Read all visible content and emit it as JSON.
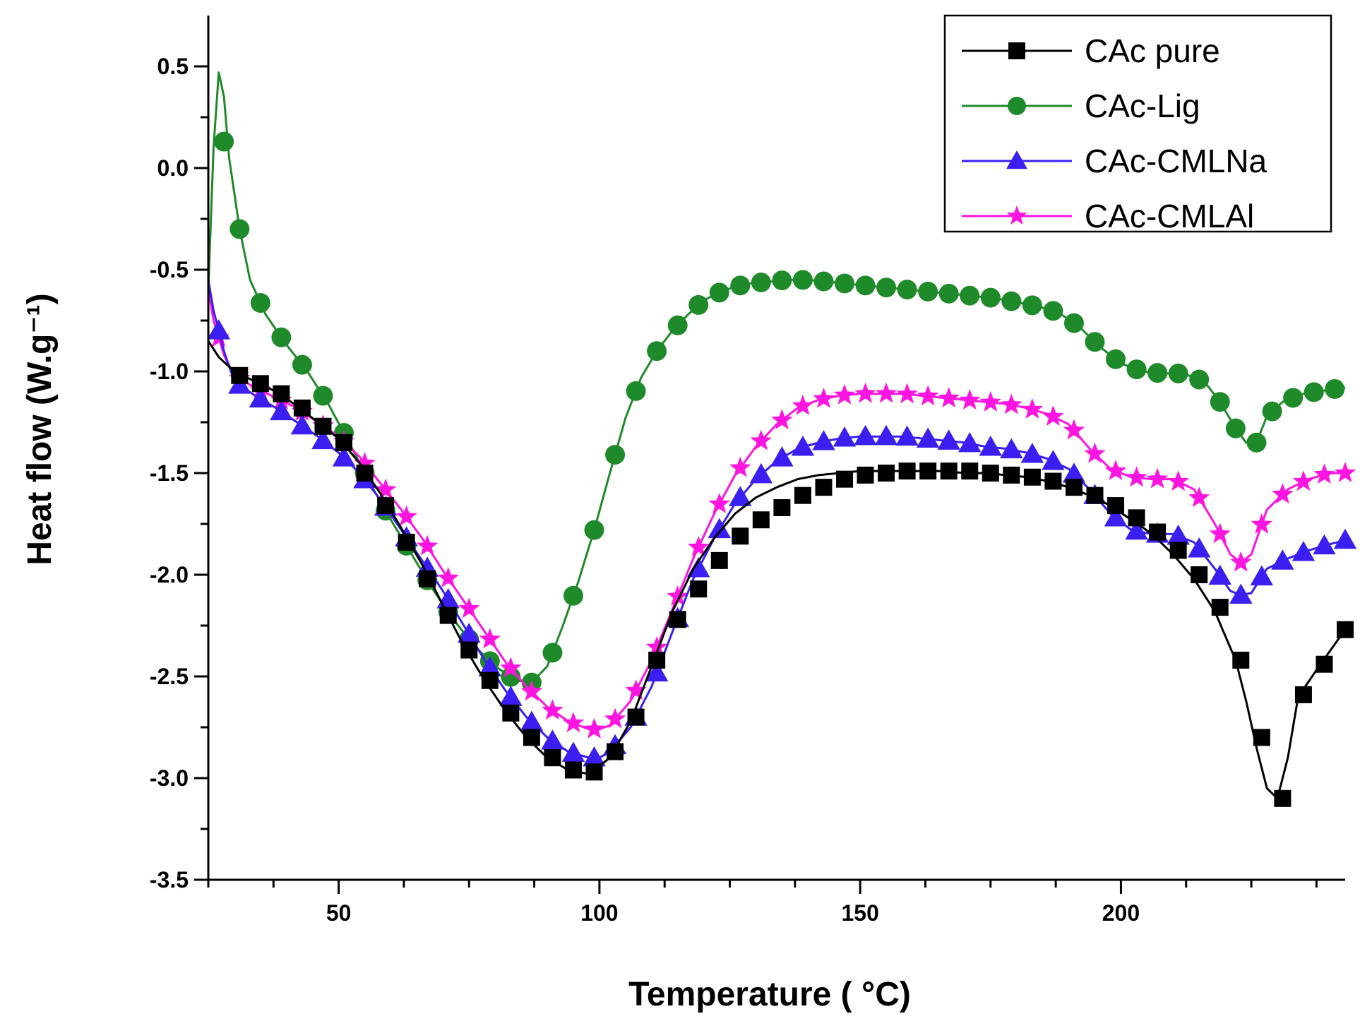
{
  "chart_data": {
    "type": "line",
    "title": "",
    "xlabel": "Temperature ( °C)",
    "ylabel": "Heat flow (W.g⁻¹)",
    "xlim": [
      25,
      243
    ],
    "ylim": [
      -3.5,
      0.75
    ],
    "x_ticks": [
      50,
      100,
      150,
      200
    ],
    "y_ticks": [
      0.5,
      0.0,
      -0.5,
      -1.0,
      -1.5,
      -2.0,
      -2.5,
      -3.0,
      -3.5
    ],
    "y_tick_labels": [
      "0.5",
      "0.0",
      "-0.5",
      "-1.0",
      "-1.5",
      "-2.0",
      "-2.5",
      "-3.0",
      "-3.5"
    ],
    "x_minor_step": 12.5,
    "y_minor_step": 0.25,
    "grid": false,
    "legend_position": "top-right",
    "series": [
      {
        "name": "CAc pure",
        "color": "#000000",
        "marker": "square",
        "x": [
          25,
          27,
          30,
          34,
          38,
          42,
          46,
          50,
          54,
          58,
          62,
          66,
          70,
          74,
          78,
          82,
          86,
          90,
          94,
          98,
          102,
          106,
          110,
          114,
          118,
          122,
          126,
          130,
          134,
          138,
          142,
          146,
          150,
          154,
          158,
          162,
          166,
          170,
          174,
          178,
          182,
          186,
          190,
          194,
          198,
          202,
          206,
          210,
          214,
          218,
          222,
          224,
          226,
          228,
          230,
          232,
          234,
          238,
          243
        ],
        "y": [
          -0.85,
          -0.93,
          -1.0,
          -1.05,
          -1.1,
          -1.17,
          -1.25,
          -1.33,
          -1.45,
          -1.6,
          -1.77,
          -1.95,
          -2.15,
          -2.35,
          -2.52,
          -2.67,
          -2.8,
          -2.9,
          -2.96,
          -2.98,
          -2.9,
          -2.72,
          -2.45,
          -2.18,
          -1.97,
          -1.82,
          -1.7,
          -1.62,
          -1.57,
          -1.53,
          -1.51,
          -1.5,
          -1.49,
          -1.49,
          -1.49,
          -1.49,
          -1.49,
          -1.5,
          -1.5,
          -1.51,
          -1.52,
          -1.54,
          -1.57,
          -1.61,
          -1.66,
          -1.73,
          -1.8,
          -1.9,
          -2.02,
          -2.18,
          -2.42,
          -2.62,
          -2.85,
          -3.05,
          -3.1,
          -2.9,
          -2.6,
          -2.45,
          -2.27
        ],
        "marker_x": [
          31,
          35,
          39,
          43,
          47,
          51,
          55,
          59,
          63,
          67,
          71,
          75,
          79,
          83,
          87,
          91,
          95,
          99,
          103,
          107,
          111,
          115,
          119,
          123,
          127,
          131,
          135,
          139,
          143,
          147,
          151,
          155,
          159,
          163,
          167,
          171,
          175,
          179,
          183,
          187,
          191,
          195,
          199,
          203,
          207,
          211,
          215,
          219,
          223,
          227,
          231,
          235,
          239,
          243
        ],
        "marker_y": [
          -1.02,
          -1.06,
          -1.11,
          -1.18,
          -1.27,
          -1.35,
          -1.5,
          -1.66,
          -1.84,
          -2.02,
          -2.2,
          -2.37,
          -2.52,
          -2.68,
          -2.8,
          -2.9,
          -2.96,
          -2.97,
          -2.87,
          -2.7,
          -2.42,
          -2.22,
          -2.07,
          -1.93,
          -1.81,
          -1.73,
          -1.67,
          -1.61,
          -1.57,
          -1.53,
          -1.51,
          -1.5,
          -1.49,
          -1.49,
          -1.49,
          -1.49,
          -1.5,
          -1.51,
          -1.52,
          -1.54,
          -1.57,
          -1.61,
          -1.66,
          -1.72,
          -1.79,
          -1.88,
          -2.0,
          -2.16,
          -2.42,
          -2.8,
          -3.1,
          -2.59,
          -2.44,
          -2.27
        ]
      },
      {
        "name": "CAc-Lig",
        "color": "#1f8a2a",
        "marker": "circle",
        "x": [
          25,
          26,
          27,
          28,
          29,
          31,
          33,
          36,
          40,
          44,
          48,
          52,
          56,
          60,
          64,
          68,
          72,
          76,
          80,
          84,
          87,
          90,
          93,
          96,
          99,
          102,
          105,
          108,
          111,
          114,
          117,
          120,
          124,
          128,
          132,
          136,
          140,
          144,
          148,
          152,
          156,
          160,
          164,
          168,
          172,
          176,
          180,
          184,
          188,
          192,
          196,
          200,
          204,
          208,
          212,
          216,
          219,
          222,
          224,
          226,
          228,
          231,
          235,
          240,
          243
        ],
        "y": [
          -0.6,
          0.1,
          0.47,
          0.35,
          0.05,
          -0.3,
          -0.55,
          -0.72,
          -0.87,
          -1.0,
          -1.16,
          -1.35,
          -1.55,
          -1.73,
          -1.9,
          -2.07,
          -2.22,
          -2.35,
          -2.45,
          -2.52,
          -2.53,
          -2.45,
          -2.25,
          -2.03,
          -1.78,
          -1.5,
          -1.23,
          -1.03,
          -0.9,
          -0.8,
          -0.72,
          -0.65,
          -0.6,
          -0.57,
          -0.56,
          -0.55,
          -0.55,
          -0.56,
          -0.57,
          -0.58,
          -0.59,
          -0.6,
          -0.61,
          -0.62,
          -0.63,
          -0.64,
          -0.66,
          -0.68,
          -0.71,
          -0.78,
          -0.88,
          -0.96,
          -1.0,
          -1.01,
          -1.01,
          -1.05,
          -1.15,
          -1.28,
          -1.35,
          -1.35,
          -1.22,
          -1.15,
          -1.11,
          -1.09,
          -1.08
        ]
      },
      {
        "name": "CAc-CMLNa",
        "color": "#3a1ff0",
        "marker": "triangle",
        "x": [
          25,
          26,
          28,
          30,
          34,
          38,
          42,
          46,
          50,
          54,
          58,
          62,
          66,
          70,
          74,
          78,
          82,
          86,
          90,
          94,
          98,
          100,
          102,
          106,
          110,
          114,
          118,
          122,
          126,
          130,
          134,
          138,
          142,
          146,
          150,
          154,
          158,
          162,
          166,
          170,
          174,
          178,
          182,
          186,
          190,
          194,
          198,
          202,
          206,
          210,
          214,
          218,
          221,
          223,
          225,
          228,
          232,
          236,
          240,
          243
        ],
        "y": [
          -0.55,
          -0.7,
          -0.9,
          -1.05,
          -1.12,
          -1.18,
          -1.25,
          -1.32,
          -1.4,
          -1.5,
          -1.63,
          -1.78,
          -1.93,
          -2.08,
          -2.25,
          -2.42,
          -2.57,
          -2.7,
          -2.8,
          -2.87,
          -2.9,
          -2.9,
          -2.87,
          -2.75,
          -2.55,
          -2.28,
          -2.02,
          -1.82,
          -1.65,
          -1.53,
          -1.44,
          -1.38,
          -1.35,
          -1.33,
          -1.32,
          -1.32,
          -1.32,
          -1.33,
          -1.34,
          -1.35,
          -1.37,
          -1.38,
          -1.4,
          -1.43,
          -1.48,
          -1.58,
          -1.7,
          -1.78,
          -1.8,
          -1.8,
          -1.84,
          -1.97,
          -2.08,
          -2.1,
          -2.09,
          -1.97,
          -1.92,
          -1.88,
          -1.85,
          -1.83
        ]
      },
      {
        "name": "CAc-CMLAl",
        "color": "#ff14e0",
        "marker": "star",
        "x": [
          25,
          26,
          28,
          30,
          34,
          38,
          42,
          46,
          50,
          54,
          58,
          62,
          66,
          70,
          74,
          78,
          82,
          86,
          90,
          94,
          98,
          100,
          102,
          106,
          110,
          114,
          118,
          122,
          126,
          130,
          134,
          138,
          142,
          146,
          150,
          154,
          158,
          162,
          166,
          170,
          174,
          178,
          182,
          186,
          190,
          194,
          198,
          202,
          206,
          210,
          214,
          218,
          221,
          223,
          225,
          228,
          232,
          236,
          240,
          243
        ],
        "y": [
          -0.6,
          -0.75,
          -0.92,
          -1.02,
          -1.08,
          -1.13,
          -1.18,
          -1.25,
          -1.32,
          -1.42,
          -1.55,
          -1.68,
          -1.82,
          -1.98,
          -2.13,
          -2.28,
          -2.43,
          -2.55,
          -2.65,
          -2.72,
          -2.76,
          -2.76,
          -2.74,
          -2.62,
          -2.42,
          -2.17,
          -1.92,
          -1.7,
          -1.51,
          -1.37,
          -1.26,
          -1.18,
          -1.14,
          -1.12,
          -1.11,
          -1.11,
          -1.11,
          -1.12,
          -1.13,
          -1.14,
          -1.15,
          -1.16,
          -1.18,
          -1.21,
          -1.26,
          -1.38,
          -1.48,
          -1.52,
          -1.53,
          -1.53,
          -1.58,
          -1.75,
          -1.9,
          -1.94,
          -1.9,
          -1.68,
          -1.58,
          -1.53,
          -1.5,
          -1.5
        ]
      }
    ]
  }
}
